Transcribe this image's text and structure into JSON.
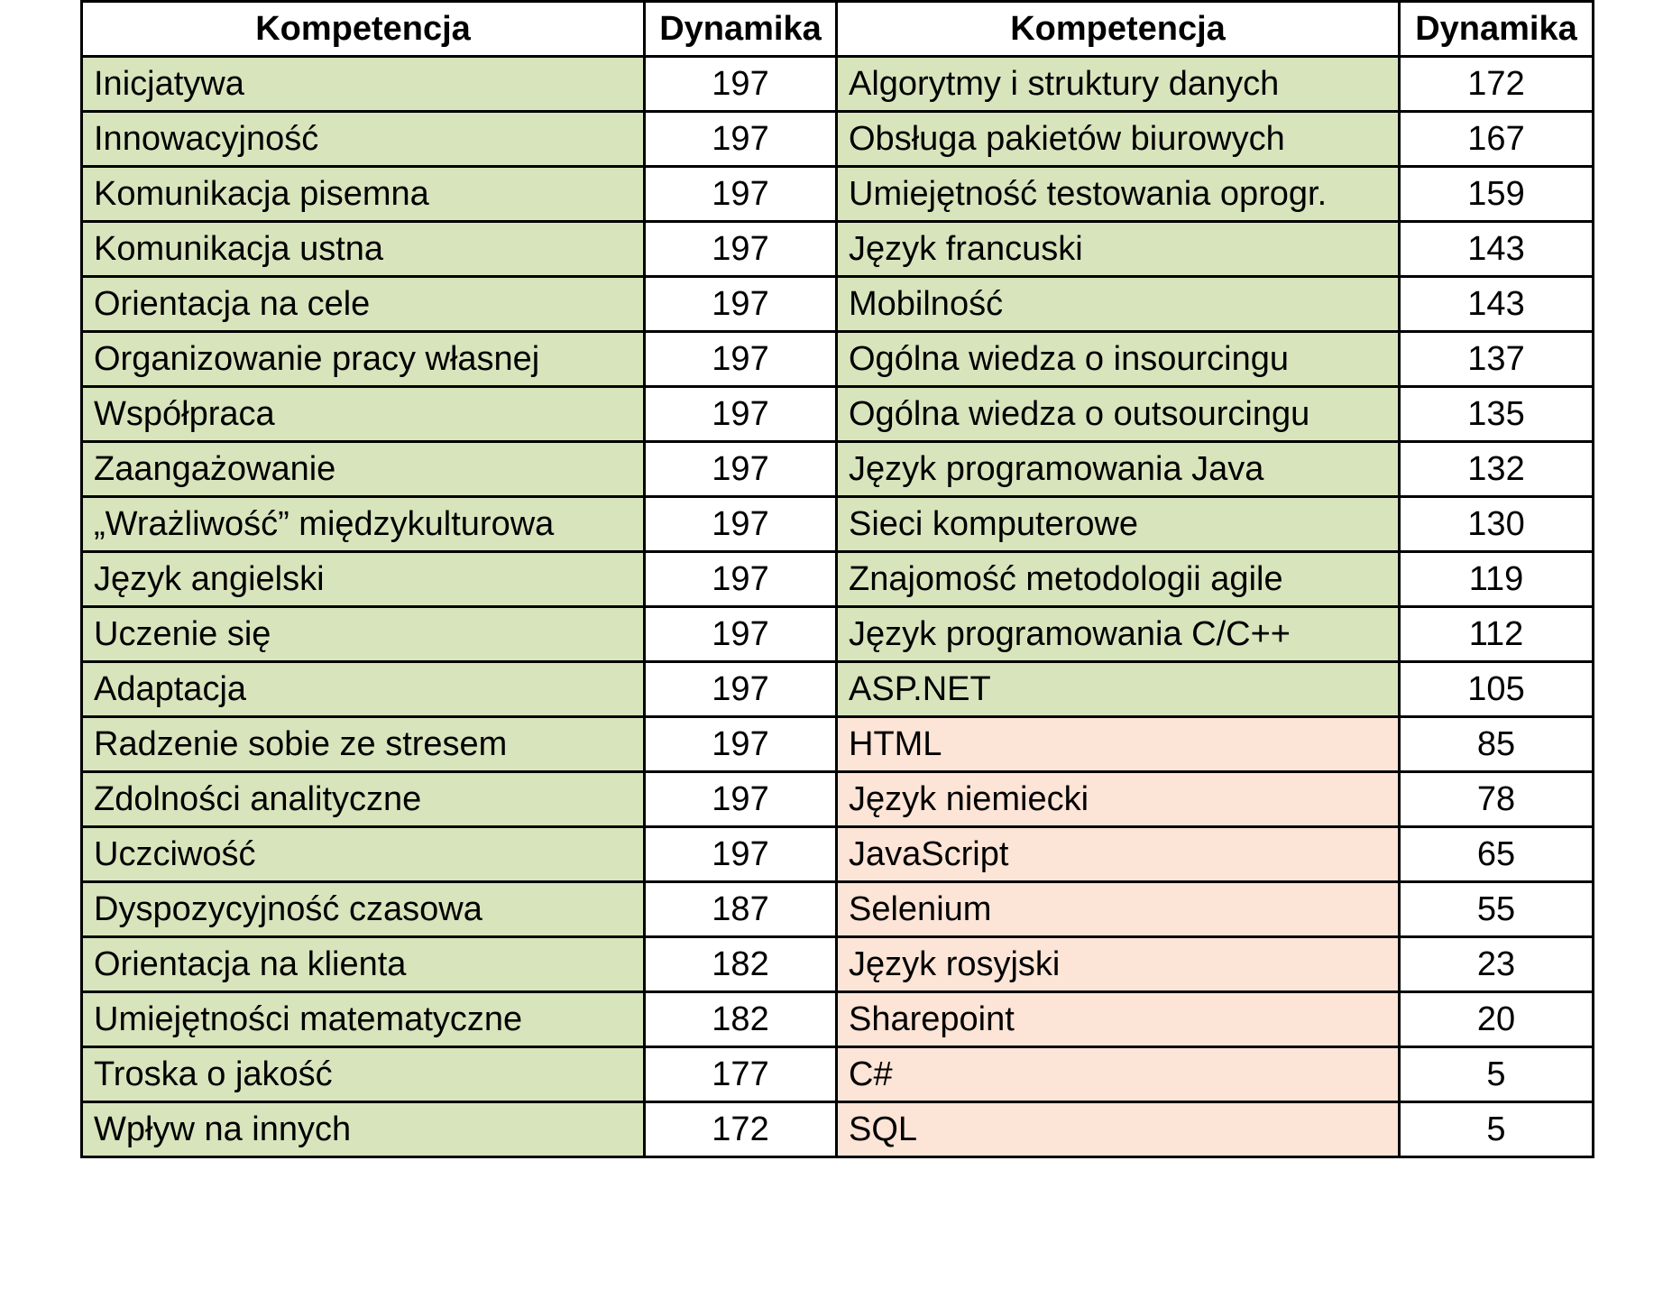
{
  "headers": [
    "Kompetencja",
    "Dynamika",
    "Kompetencja",
    "Dynamika"
  ],
  "colors": {
    "green": "#d8e4bc",
    "pink": "#fce4d6"
  },
  "rows": [
    {
      "left_name": "Inicjatywa",
      "left_value": "197",
      "right_name": "Algorytmy i struktury danych",
      "right_value": "172",
      "right_color": "green"
    },
    {
      "left_name": "Innowacyjność",
      "left_value": "197",
      "right_name": "Obsługa pakietów biurowych",
      "right_value": "167",
      "right_color": "green"
    },
    {
      "left_name": "Komunikacja pisemna",
      "left_value": "197",
      "right_name": "Umiejętność testowania oprogr.",
      "right_value": "159",
      "right_color": "green"
    },
    {
      "left_name": "Komunikacja ustna",
      "left_value": "197",
      "right_name": "Język francuski",
      "right_value": "143",
      "right_color": "green"
    },
    {
      "left_name": "Orientacja na cele",
      "left_value": "197",
      "right_name": "Mobilność",
      "right_value": "143",
      "right_color": "green"
    },
    {
      "left_name": "Organizowanie pracy własnej",
      "left_value": "197",
      "right_name": "Ogólna wiedza o insourcingu",
      "right_value": "137",
      "right_color": "green"
    },
    {
      "left_name": "Współpraca",
      "left_value": "197",
      "right_name": "Ogólna wiedza o outsourcingu",
      "right_value": "135",
      "right_color": "green"
    },
    {
      "left_name": "Zaangażowanie",
      "left_value": "197",
      "right_name": "Język programowania Java",
      "right_value": "132",
      "right_color": "green"
    },
    {
      "left_name": "„Wrażliwość” międzykulturowa",
      "left_value": "197",
      "right_name": "Sieci komputerowe",
      "right_value": "130",
      "right_color": "green"
    },
    {
      "left_name": "Język angielski",
      "left_value": "197",
      "right_name": "Znajomość metodologii agile",
      "right_value": "119",
      "right_color": "green"
    },
    {
      "left_name": "Uczenie się",
      "left_value": "197",
      "right_name": "Język programowania C/C++",
      "right_value": "112",
      "right_color": "green"
    },
    {
      "left_name": "Adaptacja",
      "left_value": "197",
      "right_name": "ASP.NET",
      "right_value": "105",
      "right_color": "green"
    },
    {
      "left_name": "Radzenie sobie ze stresem",
      "left_value": "197",
      "right_name": "HTML",
      "right_value": "85",
      "right_color": "pink"
    },
    {
      "left_name": "Zdolności analityczne",
      "left_value": "197",
      "right_name": "Język niemiecki",
      "right_value": "78",
      "right_color": "pink"
    },
    {
      "left_name": "Uczciwość",
      "left_value": "197",
      "right_name": "JavaScript",
      "right_value": "65",
      "right_color": "pink"
    },
    {
      "left_name": "Dyspozycyjność czasowa",
      "left_value": "187",
      "right_name": "Selenium",
      "right_value": "55",
      "right_color": "pink"
    },
    {
      "left_name": "Orientacja na klienta",
      "left_value": "182",
      "right_name": "Język rosyjski",
      "right_value": "23",
      "right_color": "pink"
    },
    {
      "left_name": "Umiejętności matematyczne",
      "left_value": "182",
      "right_name": "Sharepoint",
      "right_value": "20",
      "right_color": "pink"
    },
    {
      "left_name": "Troska o jakość",
      "left_value": "177",
      "right_name": "C#",
      "right_value": "5",
      "right_color": "pink"
    },
    {
      "left_name": "Wpływ na innych",
      "left_value": "172",
      "right_name": "SQL",
      "right_value": "5",
      "right_color": "pink"
    }
  ]
}
